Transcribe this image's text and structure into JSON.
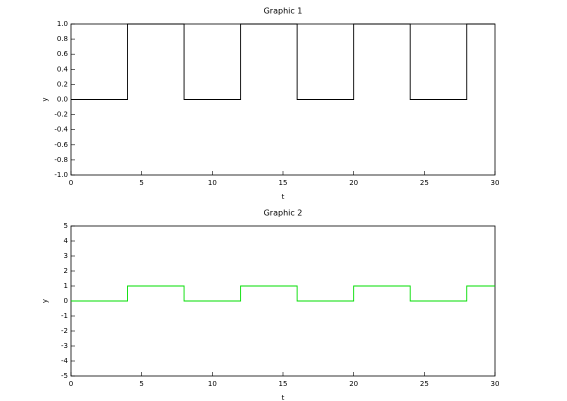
{
  "chart_data": [
    {
      "type": "line",
      "title": "Graphic 1",
      "x_label": "t",
      "y_label": "y",
      "x": [
        0,
        4,
        4,
        8,
        8,
        12,
        12,
        16,
        16,
        20,
        20,
        24,
        24,
        28,
        28,
        30
      ],
      "values": [
        0,
        0,
        1,
        1,
        0,
        0,
        1,
        1,
        0,
        0,
        1,
        1,
        0,
        0,
        1,
        1
      ],
      "color": "#000000",
      "xlim": [
        0,
        30
      ],
      "xticks": [
        0,
        5,
        10,
        15,
        20,
        25,
        30
      ],
      "ylim": [
        -1,
        1
      ],
      "yticks": [
        {
          "value": -1,
          "label": "-1.0"
        },
        {
          "value": -0.8,
          "label": "-0.8"
        },
        {
          "value": -0.6,
          "label": "-0.6"
        },
        {
          "value": -0.4,
          "label": "-0.4"
        },
        {
          "value": -0.2,
          "label": "-0.2"
        },
        {
          "value": 0,
          "label": "0.0"
        },
        {
          "value": 0.2,
          "label": "0.2"
        },
        {
          "value": 0.4,
          "label": "0.4"
        },
        {
          "value": 0.6,
          "label": "0.6"
        },
        {
          "value": 0.8,
          "label": "0.8"
        },
        {
          "value": 1,
          "label": "1.0"
        }
      ]
    },
    {
      "type": "line",
      "title": "Graphic 2",
      "x_label": "t",
      "y_label": "y",
      "x": [
        0,
        4,
        4,
        8,
        8,
        12,
        12,
        16,
        16,
        20,
        20,
        24,
        24,
        28,
        28,
        30
      ],
      "values": [
        0,
        0,
        1,
        1,
        0,
        0,
        1,
        1,
        0,
        0,
        1,
        1,
        0,
        0,
        1,
        1
      ],
      "color": "#00dd00",
      "xlim": [
        0,
        30
      ],
      "xticks": [
        0,
        5,
        10,
        15,
        20,
        25,
        30
      ],
      "ylim": [
        -5,
        5
      ],
      "yticks": [
        -5,
        -4,
        -3,
        -2,
        -1,
        0,
        1,
        2,
        3,
        4,
        5
      ]
    }
  ]
}
